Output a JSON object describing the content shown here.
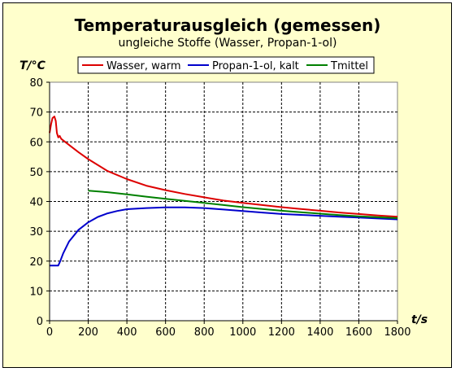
{
  "chart_data": {
    "type": "line",
    "title": "Temperaturausgleich (gemessen)",
    "subtitle": "ungleiche Stoffe (Wasser, Propan-1-ol)",
    "ylabel": "T/°C",
    "xlabel": "t/s",
    "xlim": [
      0,
      1800
    ],
    "ylim": [
      0,
      80
    ],
    "xticks": [
      0,
      200,
      400,
      600,
      800,
      1000,
      1200,
      1400,
      1600,
      1800
    ],
    "yticks": [
      0,
      10,
      20,
      30,
      40,
      50,
      60,
      70,
      80
    ],
    "grid": true,
    "legend_placement": "top",
    "series": [
      {
        "name": "Wasser, warm",
        "color": "#dd0000",
        "points": [
          [
            0,
            63
          ],
          [
            8,
            66
          ],
          [
            15,
            68
          ],
          [
            25,
            68.5
          ],
          [
            32,
            67
          ],
          [
            38,
            63
          ],
          [
            45,
            61.5
          ],
          [
            52,
            62
          ],
          [
            60,
            61
          ],
          [
            100,
            59
          ],
          [
            150,
            56.5
          ],
          [
            200,
            54.2
          ],
          [
            300,
            50.2
          ],
          [
            400,
            47.5
          ],
          [
            500,
            45.3
          ],
          [
            600,
            43.8
          ],
          [
            700,
            42.5
          ],
          [
            800,
            41.4
          ],
          [
            900,
            40.3
          ],
          [
            1000,
            39.5
          ],
          [
            1100,
            38.8
          ],
          [
            1200,
            38.1
          ],
          [
            1300,
            37.5
          ],
          [
            1400,
            36.9
          ],
          [
            1500,
            36.3
          ],
          [
            1600,
            35.8
          ],
          [
            1700,
            35.3
          ],
          [
            1800,
            34.9
          ]
        ]
      },
      {
        "name": "Propan-1-ol, kalt",
        "color": "#0000cc",
        "points": [
          [
            0,
            18.5
          ],
          [
            20,
            18.5
          ],
          [
            45,
            18.5
          ],
          [
            55,
            20
          ],
          [
            70,
            22.5
          ],
          [
            100,
            26.5
          ],
          [
            150,
            30.5
          ],
          [
            200,
            33
          ],
          [
            250,
            34.8
          ],
          [
            300,
            36
          ],
          [
            350,
            36.8
          ],
          [
            400,
            37.4
          ],
          [
            500,
            37.8
          ],
          [
            600,
            38
          ],
          [
            700,
            38
          ],
          [
            800,
            37.8
          ],
          [
            900,
            37.3
          ],
          [
            1000,
            36.8
          ],
          [
            1100,
            36.3
          ],
          [
            1200,
            35.8
          ],
          [
            1300,
            35.5
          ],
          [
            1400,
            35.2
          ],
          [
            1500,
            34.9
          ],
          [
            1600,
            34.6
          ],
          [
            1700,
            34.3
          ],
          [
            1800,
            34
          ]
        ]
      },
      {
        "name": "Tmittel",
        "color": "#008000",
        "points": [
          [
            200,
            43.6
          ],
          [
            300,
            43.1
          ],
          [
            400,
            42.4
          ],
          [
            500,
            41.6
          ],
          [
            600,
            40.9
          ],
          [
            700,
            40.2
          ],
          [
            800,
            39.5
          ],
          [
            900,
            38.8
          ],
          [
            1000,
            38.1
          ],
          [
            1100,
            37.5
          ],
          [
            1200,
            36.9
          ],
          [
            1300,
            36.4
          ],
          [
            1400,
            35.9
          ],
          [
            1500,
            35.4
          ],
          [
            1600,
            35
          ],
          [
            1700,
            34.7
          ],
          [
            1800,
            34.4
          ]
        ]
      }
    ]
  }
}
